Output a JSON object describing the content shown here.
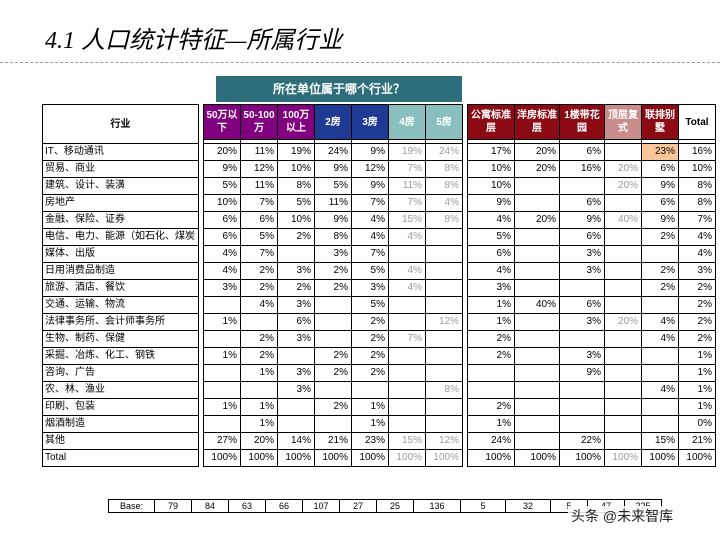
{
  "title": "4.1 人口统计特征—所属行业",
  "question": "所在单位属于哪个行业？",
  "colors": {
    "purple": "#800080",
    "blue": "#1f3a93",
    "teal": "#3c8e8e",
    "lightteal": "#8bbfbf",
    "darkred": "#8b0a14",
    "lightred": "#c88c8c",
    "question_bg": "#2e6e7a",
    "highlight": "#fbc79a"
  },
  "header": {
    "row_label": "行业",
    "columns": [
      "50万以下",
      "50-100万",
      "100万以上",
      "2房",
      "3房",
      "4房",
      "5房",
      "公寓标准层",
      "洋房标准层",
      "1楼带花园",
      "顶层复式",
      "联排别墅",
      "Total"
    ]
  },
  "rows": [
    {
      "label": "IT、移动通讯",
      "cells": [
        "20%",
        "11%",
        "19%",
        "24%",
        "9%",
        "19%",
        "24%",
        "17%",
        "20%",
        "6%",
        "",
        "23%",
        "16%"
      ]
    },
    {
      "label": "贸易、商业",
      "cells": [
        "9%",
        "12%",
        "10%",
        "9%",
        "12%",
        "7%",
        "8%",
        "10%",
        "20%",
        "16%",
        "20%",
        "6%",
        "10%"
      ]
    },
    {
      "label": "建筑、设计、装潢",
      "cells": [
        "5%",
        "11%",
        "8%",
        "5%",
        "9%",
        "11%",
        "8%",
        "10%",
        "",
        "",
        "20%",
        "9%",
        "8%"
      ]
    },
    {
      "label": "房地产",
      "cells": [
        "10%",
        "7%",
        "5%",
        "11%",
        "7%",
        "7%",
        "4%",
        "9%",
        "",
        "6%",
        "",
        "6%",
        "8%"
      ]
    },
    {
      "label": "金融、保险、证券",
      "cells": [
        "6%",
        "6%",
        "10%",
        "9%",
        "4%",
        "15%",
        "8%",
        "4%",
        "20%",
        "9%",
        "40%",
        "9%",
        "7%"
      ]
    },
    {
      "label": "电信、电力、能源（如石化、煤炭",
      "cells": [
        "6%",
        "5%",
        "2%",
        "8%",
        "4%",
        "4%",
        "",
        "5%",
        "",
        "6%",
        "",
        "2%",
        "4%"
      ]
    },
    {
      "label": "媒体、出版",
      "cells": [
        "4%",
        "7%",
        "",
        "3%",
        "7%",
        "",
        "",
        "6%",
        "",
        "3%",
        "",
        "",
        "4%"
      ]
    },
    {
      "label": "日用消费品制造",
      "cells": [
        "4%",
        "2%",
        "3%",
        "2%",
        "5%",
        "4%",
        "",
        "4%",
        "",
        "3%",
        "",
        "2%",
        "3%"
      ]
    },
    {
      "label": "旅游、酒店、餐饮",
      "cells": [
        "3%",
        "2%",
        "2%",
        "2%",
        "3%",
        "4%",
        "",
        "3%",
        "",
        "",
        "",
        "2%",
        "2%"
      ]
    },
    {
      "label": "交通、运输、物流",
      "cells": [
        "",
        "4%",
        "3%",
        "",
        "5%",
        "",
        "",
        "1%",
        "40%",
        "6%",
        "",
        "",
        "2%"
      ]
    },
    {
      "label": "法律事务所、会计师事务所",
      "cells": [
        "1%",
        "",
        "6%",
        "",
        "2%",
        "",
        "12%",
        "1%",
        "",
        "3%",
        "20%",
        "4%",
        "2%"
      ]
    },
    {
      "label": "生物、制药、保健",
      "cells": [
        "",
        "2%",
        "3%",
        "",
        "2%",
        "7%",
        "",
        "2%",
        "",
        "",
        "",
        "4%",
        "2%"
      ]
    },
    {
      "label": "采掘、冶炼、化工、钢铁",
      "cells": [
        "1%",
        "2%",
        "",
        "2%",
        "2%",
        "",
        "",
        "2%",
        "",
        "3%",
        "",
        "",
        "1%"
      ]
    },
    {
      "label": "咨询、广告",
      "cells": [
        "",
        "1%",
        "3%",
        "2%",
        "2%",
        "",
        "",
        "",
        "",
        "9%",
        "",
        "",
        "1%"
      ]
    },
    {
      "label": "农、林、渔业",
      "cells": [
        "",
        "",
        "3%",
        "",
        "",
        "",
        "8%",
        "",
        "",
        "",
        "",
        "4%",
        "1%"
      ]
    },
    {
      "label": "印刷、包装",
      "cells": [
        "1%",
        "1%",
        "",
        "2%",
        "1%",
        "",
        "",
        "2%",
        "",
        "",
        "",
        "",
        "1%"
      ]
    },
    {
      "label": "烟酒制造",
      "cells": [
        "",
        "1%",
        "",
        "",
        "1%",
        "",
        "",
        "1%",
        "",
        "",
        "",
        "",
        "0%"
      ]
    },
    {
      "label": "其他",
      "cells": [
        "27%",
        "20%",
        "14%",
        "21%",
        "23%",
        "15%",
        "12%",
        "24%",
        "",
        "22%",
        "",
        "15%",
        "21%"
      ]
    }
  ],
  "total_row": {
    "label": "Total",
    "cells": [
      "100%",
      "100%",
      "100%",
      "100%",
      "100%",
      "100%",
      "100%",
      "100%",
      "100%",
      "100%",
      "100%",
      "100%",
      "100%"
    ]
  },
  "base_row": {
    "label": "Base:",
    "cells": [
      "79",
      "84",
      "63",
      "66",
      "107",
      "27",
      "25",
      "136",
      "5",
      "32",
      "5",
      "47",
      "225"
    ]
  },
  "watermark": "头条 @未来智库"
}
